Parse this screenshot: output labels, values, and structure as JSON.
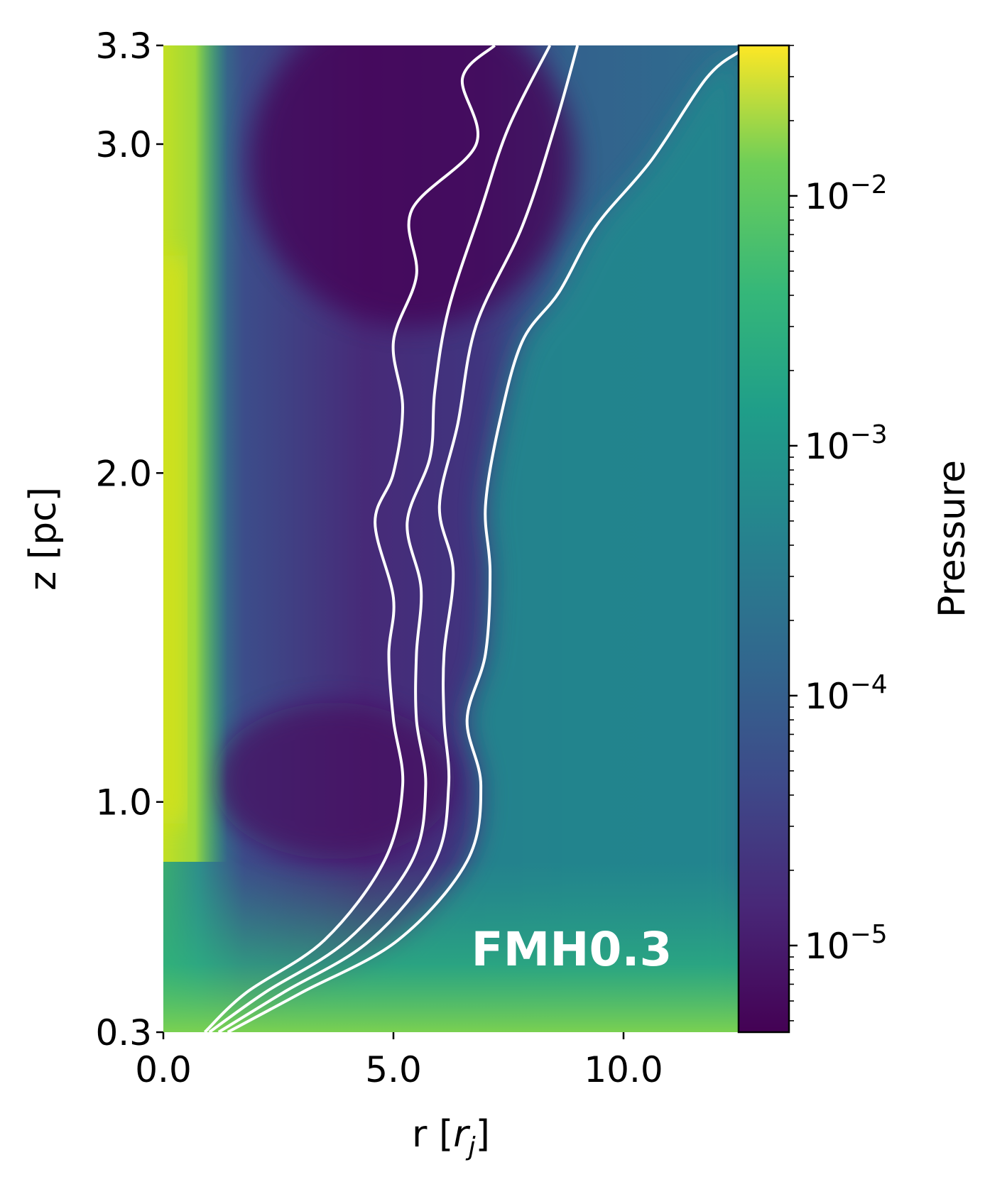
{
  "chart_data": {
    "type": "heatmap",
    "title": "",
    "panel_label": "FMH0.3",
    "xlabel": "r [r_j]",
    "xlabel_main": "r [",
    "xlabel_sym": "r",
    "xlabel_sub": "j",
    "xlabel_end": "]",
    "ylabel": "z [pc]",
    "xlim": [
      0.0,
      12.5
    ],
    "ylim": [
      0.3,
      3.3
    ],
    "x_ticks": [
      {
        "value": 0.0,
        "label": "0.0"
      },
      {
        "value": 5.0,
        "label": "5.0"
      },
      {
        "value": 10.0,
        "label": "10.0"
      }
    ],
    "y_ticks": [
      {
        "value": 0.3,
        "label": "0.3"
      },
      {
        "value": 1.0,
        "label": "1.0"
      },
      {
        "value": 2.0,
        "label": "2.0"
      },
      {
        "value": 3.0,
        "label": "3.0"
      },
      {
        "value": 3.3,
        "label": "3.3"
      }
    ],
    "colorbar": {
      "label": "Pressure",
      "scale": "log",
      "colormap": "viridis",
      "range": [
        4.5e-06,
        0.04
      ],
      "ticks": [
        {
          "value": 1e-05,
          "base": "10",
          "exp": "−5"
        },
        {
          "value": 0.0001,
          "base": "10",
          "exp": "−4"
        },
        {
          "value": 0.001,
          "base": "10",
          "exp": "−3"
        },
        {
          "value": 0.01,
          "base": "10",
          "exp": "−2"
        }
      ]
    },
    "contours": [
      {
        "name": "c1",
        "points": [
          [
            0.9,
            0.3
          ],
          [
            1.8,
            0.42
          ],
          [
            3.5,
            0.58
          ],
          [
            4.8,
            0.82
          ],
          [
            5.2,
            1.05
          ],
          [
            5.0,
            1.25
          ],
          [
            4.9,
            1.45
          ],
          [
            5.0,
            1.62
          ],
          [
            4.6,
            1.85
          ],
          [
            5.0,
            2.0
          ],
          [
            5.2,
            2.2
          ],
          [
            5.0,
            2.4
          ],
          [
            5.5,
            2.6
          ],
          [
            5.4,
            2.8
          ],
          [
            6.8,
            3.0
          ],
          [
            6.5,
            3.2
          ],
          [
            7.2,
            3.3
          ]
        ]
      },
      {
        "name": "c2",
        "points": [
          [
            1.0,
            0.3
          ],
          [
            2.2,
            0.42
          ],
          [
            4.0,
            0.58
          ],
          [
            5.4,
            0.82
          ],
          [
            5.7,
            1.05
          ],
          [
            5.5,
            1.25
          ],
          [
            5.5,
            1.45
          ],
          [
            5.6,
            1.65
          ],
          [
            5.3,
            1.85
          ],
          [
            5.8,
            2.05
          ],
          [
            5.9,
            2.25
          ],
          [
            6.2,
            2.5
          ],
          [
            6.9,
            2.8
          ],
          [
            7.5,
            3.05
          ],
          [
            8.4,
            3.3
          ]
        ]
      },
      {
        "name": "c3",
        "points": [
          [
            1.2,
            0.3
          ],
          [
            2.6,
            0.42
          ],
          [
            4.5,
            0.58
          ],
          [
            5.9,
            0.82
          ],
          [
            6.2,
            1.05
          ],
          [
            6.1,
            1.25
          ],
          [
            6.1,
            1.45
          ],
          [
            6.3,
            1.7
          ],
          [
            6.0,
            1.9
          ],
          [
            6.4,
            2.15
          ],
          [
            6.8,
            2.45
          ],
          [
            7.8,
            2.75
          ],
          [
            8.5,
            3.05
          ],
          [
            9.0,
            3.3
          ]
        ]
      },
      {
        "name": "c4",
        "points": [
          [
            1.4,
            0.3
          ],
          [
            3.0,
            0.42
          ],
          [
            5.1,
            0.58
          ],
          [
            6.6,
            0.82
          ],
          [
            6.9,
            1.05
          ],
          [
            6.6,
            1.25
          ],
          [
            7.0,
            1.45
          ],
          [
            7.1,
            1.7
          ],
          [
            7.0,
            1.9
          ],
          [
            7.3,
            2.15
          ],
          [
            7.8,
            2.4
          ],
          [
            8.6,
            2.55
          ],
          [
            9.4,
            2.75
          ],
          [
            10.6,
            2.95
          ],
          [
            11.8,
            3.2
          ],
          [
            12.5,
            3.28
          ]
        ]
      }
    ]
  }
}
